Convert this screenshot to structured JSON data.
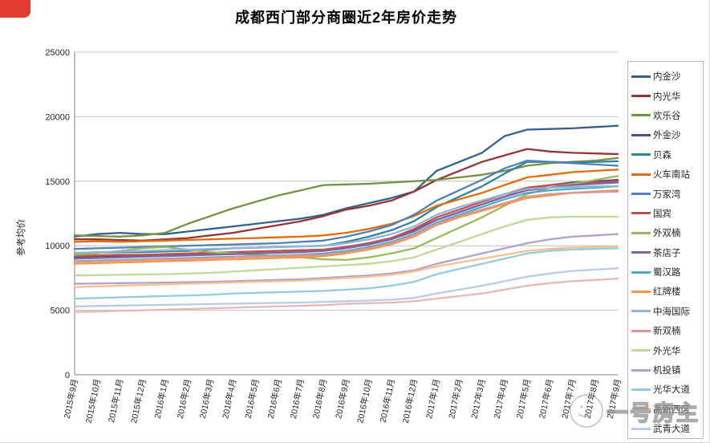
{
  "chart_data": {
    "type": "line",
    "title": "成都西门部分商圈近2年房价走势",
    "ylabel": "参考均价",
    "ylim": [
      0,
      25000
    ],
    "ytick_interval": 5000,
    "yticks": [
      0,
      5000,
      10000,
      15000,
      20000,
      25000
    ],
    "grid": "horizontal",
    "legend_position": "right",
    "x_labels": [
      "2015年9月",
      "2015年10月",
      "2015年11月",
      "2015年12月",
      "2016年1月",
      "2016年2月",
      "2016年3月",
      "2016年4月",
      "2016年5月",
      "2016年6月",
      "2016年7月",
      "2016年8月",
      "2016年9月",
      "2016年10月",
      "2016年11月",
      "2016年12月",
      "2017年1月",
      "2017年2月",
      "2017年3月",
      "2017年4月",
      "2017年5月",
      "2017年6月",
      "2017年7月",
      "2017年8月",
      "2017年9月"
    ],
    "series": [
      {
        "name": "内金沙",
        "color": "#365F91",
        "values": [
          10700,
          10900,
          11000,
          10900,
          10900,
          11100,
          11300,
          11500,
          11700,
          11900,
          12100,
          12400,
          12900,
          13300,
          13700,
          14200,
          15800,
          16500,
          17200,
          18500,
          19000,
          19050,
          19100,
          19200,
          19300
        ]
      },
      {
        "name": "内光华",
        "color": "#943634",
        "values": [
          10500,
          10500,
          10450,
          10400,
          10500,
          10600,
          10800,
          11000,
          11300,
          11600,
          11900,
          12300,
          12800,
          13100,
          13500,
          14200,
          15100,
          15800,
          16500,
          17000,
          17500,
          17300,
          17200,
          17150,
          17100
        ]
      },
      {
        "name": "欢乐谷",
        "color": "#76923C",
        "values": [
          10800,
          10750,
          10700,
          10800,
          11000,
          11700,
          12300,
          12900,
          13400,
          13900,
          14300,
          14700,
          14750,
          14800,
          14900,
          15000,
          15100,
          15300,
          15500,
          15800,
          16200,
          16400,
          16500,
          16600,
          16800
        ]
      },
      {
        "name": "外金沙",
        "color": "#5F497A",
        "values": [
          9100,
          9150,
          9200,
          9250,
          9300,
          9350,
          9400,
          9500,
          9550,
          9600,
          9650,
          9700,
          9900,
          10200,
          10600,
          11200,
          12000,
          12600,
          13200,
          13800,
          14400,
          14700,
          14900,
          15000,
          15100
        ]
      },
      {
        "name": "贝森",
        "color": "#31849B",
        "values": [
          9400,
          9450,
          9500,
          9500,
          9550,
          9600,
          9700,
          9800,
          9850,
          9900,
          9950,
          10000,
          10300,
          10700,
          11200,
          11900,
          13000,
          13800,
          14600,
          15600,
          16500,
          16500,
          16450,
          16500,
          16550
        ]
      },
      {
        "name": "火车南站",
        "color": "#E36C0A",
        "values": [
          10300,
          10350,
          10300,
          10350,
          10400,
          10450,
          10500,
          10550,
          10600,
          10650,
          10700,
          10800,
          11000,
          11300,
          11700,
          12300,
          13100,
          13600,
          14100,
          14700,
          15300,
          15500,
          15700,
          15800,
          15900
        ]
      },
      {
        "name": "万家湾",
        "color": "#4F81BD",
        "values": [
          9750,
          9800,
          9850,
          9900,
          9950,
          10000,
          10050,
          10100,
          10150,
          10200,
          10300,
          10400,
          10700,
          11100,
          11600,
          12400,
          13500,
          14300,
          15100,
          16000,
          16600,
          16500,
          16400,
          16300,
          16200
        ]
      },
      {
        "name": "国宾",
        "color": "#C0504D",
        "values": [
          9200,
          9250,
          9300,
          9300,
          9350,
          9400,
          9450,
          9500,
          9550,
          9600,
          9650,
          9700,
          9900,
          10200,
          10600,
          11300,
          12200,
          12800,
          13400,
          14000,
          14500,
          14700,
          14800,
          14900,
          15000
        ]
      },
      {
        "name": "外双楠",
        "color": "#9BBB59",
        "values": [
          9300,
          9400,
          9600,
          9800,
          9900,
          9700,
          9500,
          9400,
          9300,
          9200,
          9100,
          8950,
          8900,
          9100,
          9400,
          9800,
          10600,
          11400,
          12200,
          13100,
          14000,
          14500,
          14800,
          15100,
          15400
        ]
      },
      {
        "name": "茶店子",
        "color": "#8064A2",
        "values": [
          9000,
          9050,
          9100,
          9150,
          9200,
          9250,
          9300,
          9350,
          9400,
          9450,
          9500,
          9600,
          9800,
          10100,
          10500,
          11100,
          12000,
          12600,
          13200,
          13800,
          14300,
          14500,
          14700,
          14800,
          14900
        ]
      },
      {
        "name": "蜀汉路",
        "color": "#4BACC6",
        "values": [
          8800,
          8850,
          8900,
          8950,
          9000,
          9050,
          9100,
          9150,
          9200,
          9250,
          9300,
          9400,
          9600,
          9900,
          10300,
          10900,
          11800,
          12400,
          13000,
          13600,
          14100,
          14300,
          14400,
          14500,
          14600
        ]
      },
      {
        "name": "红牌楼",
        "color": "#F79646",
        "values": [
          8600,
          8650,
          8700,
          8750,
          8800,
          8850,
          8900,
          8950,
          9000,
          9050,
          9100,
          9200,
          9400,
          9700,
          10100,
          10700,
          11600,
          12200,
          12700,
          13200,
          13700,
          13900,
          14100,
          14200,
          14300
        ]
      },
      {
        "name": "中海国际",
        "color": "#95B3D7",
        "values": [
          9450,
          9500,
          9550,
          9600,
          9650,
          9700,
          9750,
          9800,
          9850,
          9900,
          9950,
          10000,
          10200,
          10500,
          10900,
          11500,
          12400,
          13000,
          13500,
          14000,
          14400,
          14500,
          14550,
          14600,
          14600
        ]
      },
      {
        "name": "新双楠",
        "color": "#D99694",
        "values": [
          8750,
          8800,
          8850,
          8900,
          8950,
          9000,
          9050,
          9100,
          9150,
          9200,
          9250,
          9300,
          9500,
          9800,
          10200,
          10800,
          11700,
          12300,
          12800,
          13300,
          13800,
          14000,
          14100,
          14150,
          14200
        ]
      },
      {
        "name": "外光华",
        "color": "#C3D69B",
        "values": [
          7700,
          7720,
          7750,
          7780,
          7800,
          7850,
          7900,
          8000,
          8100,
          8200,
          8300,
          8400,
          8500,
          8600,
          8800,
          9100,
          9700,
          10300,
          10900,
          11500,
          12000,
          12200,
          12250,
          12250,
          12250
        ]
      },
      {
        "name": "机投镇",
        "color": "#B2A2C7",
        "values": [
          7050,
          7080,
          7100,
          7120,
          7150,
          7180,
          7200,
          7250,
          7300,
          7350,
          7400,
          7500,
          7600,
          7700,
          7850,
          8100,
          8600,
          9000,
          9400,
          9800,
          10200,
          10500,
          10700,
          10800,
          10900
        ]
      },
      {
        "name": "光华大道",
        "color": "#92CDDC",
        "values": [
          5900,
          5950,
          6000,
          6050,
          6100,
          6150,
          6200,
          6300,
          6350,
          6400,
          6450,
          6500,
          6600,
          6700,
          6900,
          7200,
          7800,
          8200,
          8600,
          9000,
          9400,
          9600,
          9700,
          9750,
          9800
        ]
      },
      {
        "name": "高新西区",
        "color": "#FABF8F",
        "values": [
          6800,
          6850,
          6900,
          6950,
          7000,
          7050,
          7100,
          7150,
          7200,
          7250,
          7300,
          7400,
          7500,
          7600,
          7750,
          8000,
          8400,
          8700,
          9000,
          9300,
          9600,
          9750,
          9850,
          9900,
          9950
        ]
      },
      {
        "name": "武青大道",
        "color": "#B8CCE4",
        "values": [
          5300,
          5330,
          5360,
          5390,
          5420,
          5450,
          5480,
          5510,
          5540,
          5570,
          5600,
          5650,
          5700,
          5750,
          5820,
          5950,
          6300,
          6600,
          6900,
          7250,
          7600,
          7850,
          8050,
          8150,
          8250
        ]
      },
      {
        "name": "",
        "color": "#E6B9B8",
        "values": [
          4875,
          4900,
          4950,
          5000,
          5050,
          5100,
          5150,
          5200,
          5250,
          5300,
          5350,
          5400,
          5500,
          5550,
          5600,
          5700,
          5900,
          6100,
          6300,
          6600,
          6900,
          7100,
          7250,
          7350,
          7450
        ]
      }
    ]
  },
  "watermark": {
    "text": "一号房主"
  },
  "colors": {
    "gridline": "#BFBFBF",
    "axis": "#808080",
    "tick_text": "#262626",
    "corner_mark": "#E23C30"
  }
}
